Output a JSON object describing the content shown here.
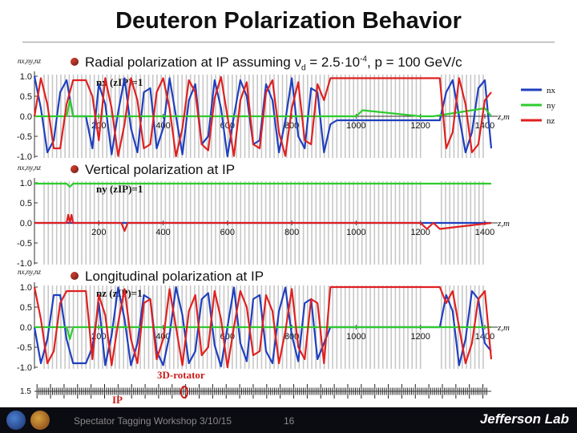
{
  "slide": {
    "title": "Deuteron Polarization Behavior",
    "bullets": [
      {
        "label": "Radial polarization at IP assuming ν",
        "sub": "d",
        "rest": " = 2.5·10",
        "sup": "-4",
        "tail": ", p = 100 GeV/c"
      },
      {
        "label": "Vertical polarization at IP"
      },
      {
        "label": "Longitudinal polarization at IP"
      }
    ],
    "footer": {
      "workshop": "Spectator Tagging Workshop 3/10/15",
      "page": "16",
      "lab": "Jefferson Lab"
    },
    "legend": [
      "nx",
      "ny",
      "nz"
    ],
    "colors": {
      "nx": "#1f3fbf",
      "ny": "#2ecc2e",
      "nz": "#e02020",
      "grid": "#9a9a9a"
    }
  },
  "lattice": {
    "labels": [
      "3D-rotator",
      "IP"
    ],
    "ytick": "1.5"
  },
  "chart_data": [
    {
      "type": "line",
      "ylabel": "nx,ny,nz",
      "xlabel": "z,m",
      "annotation": "nx (zIP)=1",
      "xticks": [
        200,
        400,
        600,
        800,
        1000,
        1200,
        1400
      ],
      "yticks": [
        "1.0",
        "0.5",
        "0.0",
        "-0.5",
        "-1.0"
      ],
      "ylim": [
        -1.0,
        1.0
      ],
      "xlim": [
        0,
        1420
      ],
      "series": [
        {
          "name": "nx",
          "x": [
            0,
            20,
            40,
            60,
            80,
            100,
            120,
            140,
            160,
            180,
            200,
            220,
            240,
            260,
            280,
            300,
            320,
            340,
            360,
            380,
            400,
            420,
            440,
            460,
            480,
            500,
            520,
            540,
            560,
            580,
            600,
            620,
            640,
            660,
            680,
            700,
            720,
            740,
            760,
            780,
            800,
            820,
            840,
            860,
            880,
            900,
            920,
            940,
            960,
            980,
            1000,
            1020,
            1040,
            1060,
            1080,
            1100,
            1120,
            1140,
            1160,
            1180,
            1200,
            1220,
            1240,
            1260,
            1280,
            1300,
            1320,
            1340,
            1360,
            1380,
            1400,
            1420
          ],
          "y": [
            1.0,
            0.2,
            -0.9,
            -0.6,
            0.6,
            0.9,
            0.0,
            0.0,
            0.0,
            -0.8,
            0.8,
            0.3,
            -0.95,
            0.1,
            0.95,
            -0.3,
            -0.9,
            0.6,
            0.7,
            -0.8,
            -0.3,
            0.95,
            0.0,
            -0.95,
            0.4,
            0.8,
            -0.7,
            -0.5,
            0.9,
            0.2,
            -1.0,
            0.0,
            0.9,
            0.5,
            -0.7,
            -0.6,
            0.8,
            0.4,
            -0.9,
            -0.1,
            0.95,
            -0.5,
            -0.8,
            0.7,
            0.6,
            -0.9,
            -0.2,
            -0.1,
            -0.1,
            -0.1,
            -0.1,
            -0.1,
            -0.1,
            -0.1,
            -0.1,
            -0.1,
            -0.1,
            -0.1,
            -0.1,
            -0.1,
            -0.1,
            -0.1,
            -0.1,
            -0.1,
            0.6,
            0.9,
            0.0,
            -0.9,
            -0.4,
            0.7,
            0.9,
            -0.8
          ]
        },
        {
          "name": "ny",
          "x": [
            0,
            100,
            110,
            120,
            130,
            200,
            300,
            400,
            600,
            800,
            1000,
            1020,
            1200,
            1220,
            1240,
            1400,
            1420
          ],
          "y": [
            0.0,
            0.0,
            0.4,
            0.0,
            0.0,
            0.0,
            0.0,
            0.0,
            0.0,
            0.0,
            0.0,
            0.15,
            0.0,
            0.0,
            0.0,
            0.2,
            0.0
          ]
        },
        {
          "name": "nz",
          "x": [
            0,
            20,
            40,
            60,
            80,
            100,
            120,
            140,
            160,
            180,
            200,
            220,
            240,
            260,
            280,
            300,
            320,
            340,
            360,
            380,
            400,
            420,
            440,
            460,
            480,
            500,
            520,
            540,
            560,
            580,
            600,
            620,
            640,
            660,
            680,
            700,
            720,
            740,
            760,
            780,
            800,
            820,
            840,
            860,
            880,
            900,
            920,
            940,
            960,
            980,
            1000,
            1020,
            1040,
            1060,
            1080,
            1100,
            1120,
            1140,
            1160,
            1180,
            1200,
            1220,
            1240,
            1260,
            1280,
            1300,
            1320,
            1340,
            1360,
            1380,
            1400,
            1420
          ],
          "y": [
            0.0,
            0.95,
            0.3,
            -0.8,
            -0.8,
            0.3,
            0.9,
            0.9,
            0.9,
            0.5,
            -0.6,
            0.95,
            0.2,
            -0.99,
            -0.2,
            0.95,
            0.4,
            -0.8,
            -0.7,
            0.6,
            0.95,
            0.2,
            -1.0,
            -0.3,
            0.9,
            0.6,
            -0.7,
            -0.85,
            0.45,
            0.98,
            0.0,
            -0.99,
            0.4,
            0.85,
            -0.7,
            -0.8,
            0.6,
            0.9,
            -0.4,
            -0.99,
            0.2,
            0.85,
            -0.6,
            -0.7,
            0.8,
            0.4,
            0.95,
            0.95,
            0.95,
            0.95,
            0.95,
            0.95,
            0.95,
            0.95,
            0.95,
            0.95,
            0.95,
            0.95,
            0.95,
            0.95,
            0.95,
            0.95,
            0.95,
            0.95,
            -0.8,
            -0.4,
            0.95,
            0.3,
            -0.9,
            -0.7,
            0.4,
            0.6
          ]
        }
      ]
    },
    {
      "type": "line",
      "ylabel": "nx,ny,nz",
      "xlabel": "z,m",
      "annotation": "ny (zIP)=1",
      "xticks": [
        200,
        400,
        600,
        800,
        1000,
        1200,
        1400
      ],
      "yticks": [
        "1.0",
        "0.5",
        "0.0",
        "-0.5",
        "-1.0"
      ],
      "ylim": [
        -1.0,
        1.0
      ],
      "xlim": [
        0,
        1420
      ],
      "series": [
        {
          "name": "nx",
          "x": [
            0,
            1420
          ],
          "y": [
            0.0,
            0.0
          ]
        },
        {
          "name": "ny",
          "x": [
            0,
            100,
            110,
            120,
            130,
            1420
          ],
          "y": [
            0.98,
            0.98,
            0.9,
            0.98,
            0.98,
            0.98
          ]
        },
        {
          "name": "nz",
          "x": [
            0,
            100,
            105,
            110,
            115,
            120,
            130,
            270,
            280,
            290,
            300,
            600,
            800,
            1000,
            1200,
            1220,
            1240,
            1260,
            1420
          ],
          "y": [
            0.0,
            0.0,
            0.2,
            0.0,
            0.2,
            0.0,
            0.0,
            0.0,
            -0.2,
            0.0,
            0.0,
            0.0,
            0.0,
            0.0,
            0.0,
            -0.15,
            0.0,
            -0.15,
            0.0
          ]
        }
      ]
    },
    {
      "type": "line",
      "ylabel": "nx,ny,nz",
      "xlabel": "z,m",
      "annotation": "nz (zIP)=1",
      "xticks": [
        200,
        400,
        600,
        800,
        1000,
        1200,
        1400
      ],
      "yticks": [
        "1.0",
        "0.5",
        "0.0",
        "-0.5",
        "-1.0"
      ],
      "ylim": [
        -1.0,
        1.0
      ],
      "xlim": [
        0,
        1420
      ],
      "series": [
        {
          "name": "nx",
          "x": [
            0,
            20,
            40,
            60,
            80,
            100,
            120,
            140,
            160,
            180,
            200,
            220,
            240,
            260,
            280,
            300,
            320,
            340,
            360,
            380,
            400,
            420,
            440,
            460,
            480,
            500,
            520,
            540,
            560,
            580,
            600,
            620,
            640,
            660,
            680,
            700,
            720,
            740,
            760,
            780,
            800,
            820,
            840,
            860,
            880,
            900,
            920,
            940,
            960,
            980,
            1000,
            1020,
            1040,
            1060,
            1080,
            1100,
            1120,
            1140,
            1160,
            1180,
            1200,
            1220,
            1240,
            1260,
            1280,
            1300,
            1320,
            1340,
            1360,
            1380,
            1400,
            1420
          ],
          "y": [
            0.0,
            -0.9,
            -0.3,
            0.8,
            0.8,
            -0.3,
            -0.9,
            -0.9,
            -0.9,
            -0.5,
            0.6,
            -0.95,
            -0.2,
            0.99,
            0.2,
            -0.95,
            -0.4,
            0.8,
            0.7,
            -0.6,
            -0.95,
            -0.2,
            1.0,
            0.3,
            -0.9,
            -0.6,
            0.7,
            0.85,
            -0.45,
            -0.98,
            0.0,
            0.99,
            -0.4,
            -0.85,
            0.7,
            0.8,
            -0.6,
            -0.9,
            0.4,
            0.99,
            -0.2,
            -0.85,
            0.6,
            0.7,
            -0.8,
            -0.4,
            0.0,
            0.0,
            0.0,
            0.0,
            0.0,
            0.0,
            0.0,
            0.0,
            0.0,
            0.0,
            0.0,
            0.0,
            0.0,
            0.0,
            0.0,
            0.0,
            0.0,
            0.0,
            0.8,
            0.4,
            -0.95,
            -0.3,
            0.9,
            0.7,
            -0.4,
            -0.6
          ]
        },
        {
          "name": "ny",
          "x": [
            0,
            100,
            110,
            120,
            130,
            600,
            900,
            920,
            940,
            1200,
            1400,
            1420
          ],
          "y": [
            0.0,
            0.0,
            -0.3,
            0.0,
            0.0,
            0.0,
            0.0,
            0.0,
            0.0,
            0.0,
            0.0,
            0.0
          ]
        },
        {
          "name": "nz",
          "x": [
            0,
            20,
            40,
            60,
            80,
            100,
            120,
            140,
            160,
            180,
            200,
            220,
            240,
            260,
            280,
            300,
            320,
            340,
            360,
            380,
            400,
            420,
            440,
            460,
            480,
            500,
            520,
            540,
            560,
            580,
            600,
            620,
            640,
            660,
            680,
            700,
            720,
            740,
            760,
            780,
            800,
            820,
            840,
            860,
            880,
            900,
            920,
            940,
            960,
            980,
            1000,
            1020,
            1040,
            1060,
            1080,
            1100,
            1120,
            1140,
            1160,
            1180,
            1200,
            1220,
            1240,
            1260,
            1280,
            1300,
            1320,
            1340,
            1360,
            1380,
            1400,
            1420
          ],
          "y": [
            1.0,
            0.2,
            -0.9,
            -0.6,
            0.6,
            0.9,
            0.9,
            0.9,
            0.9,
            -0.8,
            0.8,
            0.3,
            -0.95,
            0.1,
            0.95,
            -0.3,
            -0.9,
            0.6,
            0.7,
            -0.8,
            -0.3,
            0.95,
            0.0,
            -0.95,
            0.4,
            0.8,
            -0.7,
            -0.5,
            0.9,
            0.2,
            -1.0,
            0.0,
            0.9,
            0.5,
            -0.7,
            -0.6,
            0.8,
            0.4,
            -0.9,
            -0.1,
            0.95,
            -0.5,
            -0.8,
            0.7,
            0.6,
            -0.9,
            1.0,
            1.0,
            1.0,
            1.0,
            1.0,
            1.0,
            1.0,
            1.0,
            1.0,
            1.0,
            1.0,
            1.0,
            1.0,
            1.0,
            1.0,
            1.0,
            1.0,
            1.0,
            0.6,
            0.9,
            0.0,
            -0.9,
            -0.4,
            0.7,
            0.9,
            -0.8
          ]
        }
      ]
    }
  ]
}
